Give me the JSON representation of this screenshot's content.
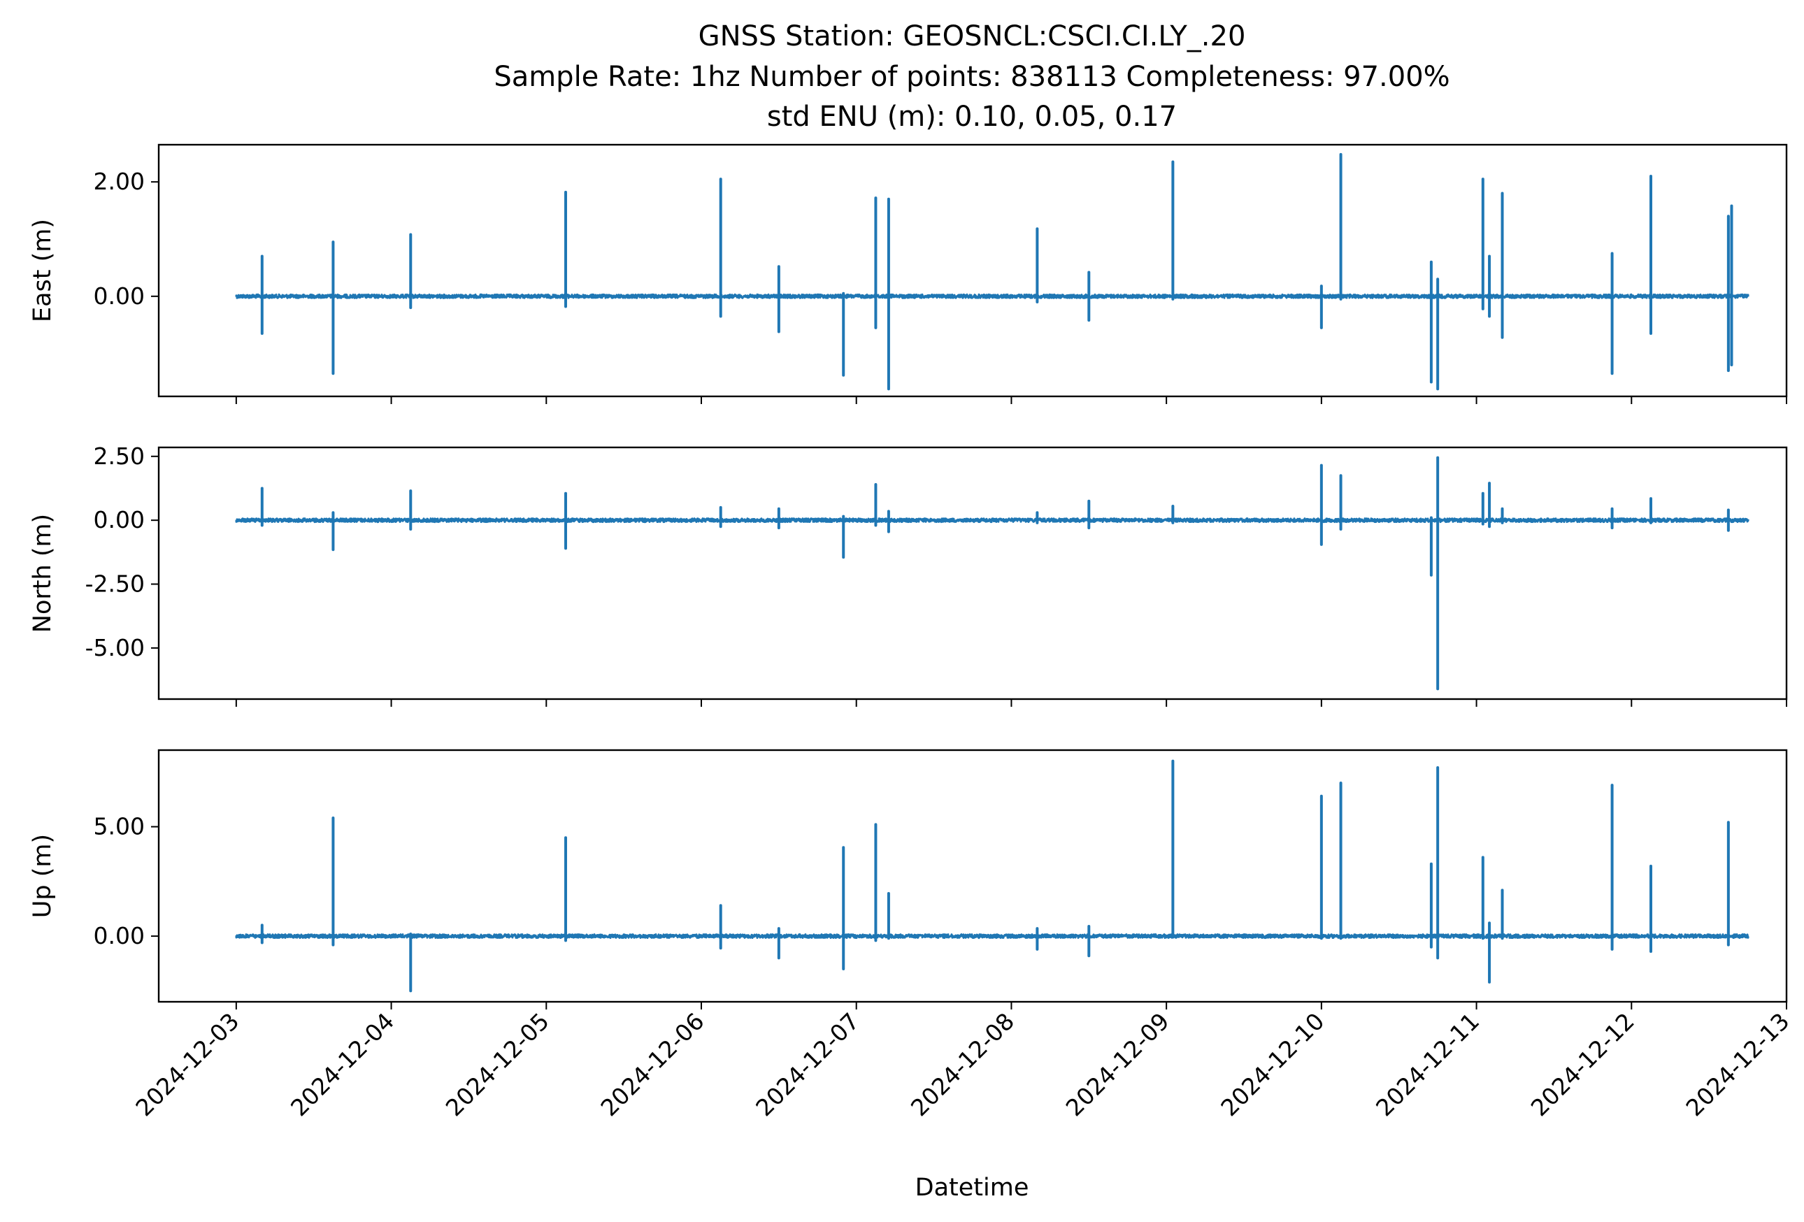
{
  "chart_data": {
    "type": "line",
    "title_lines": [
      "GNSS Station: GEOSNCL:CSCI.CI.LY_.20",
      "Sample Rate: 1hz   Number of points: 838113    Completeness:  97.00%",
      "std ENU (m):  0.10, 0.05, 0.17"
    ],
    "xlabel": "Datetime",
    "x_ticks": [
      "2024-12-03",
      "2024-12-04",
      "2024-12-05",
      "2024-12-06",
      "2024-12-07",
      "2024-12-08",
      "2024-12-09",
      "2024-12-10",
      "2024-12-11",
      "2024-12-12",
      "2024-12-13"
    ],
    "x_range": [
      "2024-12-02 12:00",
      "2024-12-13 00:00"
    ],
    "data_range": [
      "2024-12-03 00:00",
      "2024-12-12 18:00"
    ],
    "line_color": "#1f77b4",
    "grid": false,
    "panels": [
      {
        "ylabel": "East (m)",
        "ylim": [
          -1.75,
          2.65
        ],
        "y_ticks": [
          {
            "value": 2.0,
            "label": "2.00"
          },
          {
            "value": 0.0,
            "label": "0.00"
          }
        ],
        "spikes": [
          {
            "t": "2024-12-03 04:00",
            "max": 0.7,
            "min": -0.65
          },
          {
            "t": "2024-12-03 15:00",
            "max": 0.95,
            "min": -1.35
          },
          {
            "t": "2024-12-04 03:00",
            "max": 1.08,
            "min": -0.2
          },
          {
            "t": "2024-12-05 03:00",
            "max": 1.82,
            "min": -0.18
          },
          {
            "t": "2024-12-06 03:00",
            "max": 2.05,
            "min": -0.35
          },
          {
            "t": "2024-12-06 12:00",
            "max": 0.52,
            "min": -0.62
          },
          {
            "t": "2024-12-06 22:00",
            "max": 0.05,
            "min": -1.38
          },
          {
            "t": "2024-12-07 03:00",
            "max": 1.72,
            "min": -0.55
          },
          {
            "t": "2024-12-07 05:00",
            "max": 1.7,
            "min": -1.62
          },
          {
            "t": "2024-12-08 04:00",
            "max": 1.18,
            "min": -0.1
          },
          {
            "t": "2024-12-08 12:00",
            "max": 0.42,
            "min": -0.42
          },
          {
            "t": "2024-12-09 01:00",
            "max": 2.35,
            "min": -0.05
          },
          {
            "t": "2024-12-10 00:00",
            "max": 0.18,
            "min": -0.55
          },
          {
            "t": "2024-12-10 03:00",
            "max": 2.48,
            "min": -0.05
          },
          {
            "t": "2024-12-10 17:00",
            "max": 0.6,
            "min": -1.5
          },
          {
            "t": "2024-12-10 18:00",
            "max": 0.3,
            "min": -1.62
          },
          {
            "t": "2024-12-11 01:00",
            "max": 2.05,
            "min": -0.22
          },
          {
            "t": "2024-12-11 02:00",
            "max": 0.7,
            "min": -0.35
          },
          {
            "t": "2024-12-11 04:00",
            "max": 1.8,
            "min": -0.72
          },
          {
            "t": "2024-12-11 21:00",
            "max": 0.75,
            "min": -1.35
          },
          {
            "t": "2024-12-12 03:00",
            "max": 2.1,
            "min": -0.65
          },
          {
            "t": "2024-12-12 15:00",
            "max": 1.4,
            "min": -1.3
          },
          {
            "t": "2024-12-12 15:30",
            "max": 1.58,
            "min": -1.2
          }
        ]
      },
      {
        "ylabel": "North (m)",
        "ylim": [
          -7.0,
          2.85
        ],
        "y_ticks": [
          {
            "value": 2.5,
            "label": "2.50"
          },
          {
            "value": 0.0,
            "label": "0.00"
          },
          {
            "value": -2.5,
            "label": "-2.50"
          },
          {
            "value": -5.0,
            "label": "-5.00"
          }
        ],
        "spikes": [
          {
            "t": "2024-12-03 04:00",
            "max": 1.25,
            "min": -0.2
          },
          {
            "t": "2024-12-03 15:00",
            "max": 0.3,
            "min": -1.15
          },
          {
            "t": "2024-12-04 03:00",
            "max": 1.15,
            "min": -0.35
          },
          {
            "t": "2024-12-05 03:00",
            "max": 1.05,
            "min": -1.1
          },
          {
            "t": "2024-12-06 03:00",
            "max": 0.5,
            "min": -0.25
          },
          {
            "t": "2024-12-06 12:00",
            "max": 0.45,
            "min": -0.3
          },
          {
            "t": "2024-12-06 22:00",
            "max": 0.15,
            "min": -1.45
          },
          {
            "t": "2024-12-07 03:00",
            "max": 1.4,
            "min": -0.2
          },
          {
            "t": "2024-12-07 05:00",
            "max": 0.35,
            "min": -0.45
          },
          {
            "t": "2024-12-08 04:00",
            "max": 0.3,
            "min": -0.1
          },
          {
            "t": "2024-12-08 12:00",
            "max": 0.75,
            "min": -0.3
          },
          {
            "t": "2024-12-09 01:00",
            "max": 0.55,
            "min": -0.1
          },
          {
            "t": "2024-12-10 00:00",
            "max": 2.15,
            "min": -0.95
          },
          {
            "t": "2024-12-10 03:00",
            "max": 1.75,
            "min": -0.35
          },
          {
            "t": "2024-12-10 17:00",
            "max": 0.1,
            "min": -2.15
          },
          {
            "t": "2024-12-10 18:00",
            "max": 2.45,
            "min": -6.6
          },
          {
            "t": "2024-12-11 01:00",
            "max": 1.05,
            "min": -0.15
          },
          {
            "t": "2024-12-11 02:00",
            "max": 1.45,
            "min": -0.25
          },
          {
            "t": "2024-12-11 04:00",
            "max": 0.45,
            "min": -0.1
          },
          {
            "t": "2024-12-11 21:00",
            "max": 0.45,
            "min": -0.3
          },
          {
            "t": "2024-12-12 03:00",
            "max": 0.85,
            "min": -0.1
          },
          {
            "t": "2024-12-12 15:00",
            "max": 0.4,
            "min": -0.4
          }
        ]
      },
      {
        "ylabel": "Up (m)",
        "ylim": [
          -3.0,
          8.5
        ],
        "y_ticks": [
          {
            "value": 5.0,
            "label": "5.00"
          },
          {
            "value": 0.0,
            "label": "0.00"
          }
        ],
        "spikes": [
          {
            "t": "2024-12-03 04:00",
            "max": 0.5,
            "min": -0.3
          },
          {
            "t": "2024-12-03 15:00",
            "max": 5.4,
            "min": -0.4
          },
          {
            "t": "2024-12-04 03:00",
            "max": 0.1,
            "min": -2.5
          },
          {
            "t": "2024-12-05 03:00",
            "max": 4.5,
            "min": -0.2
          },
          {
            "t": "2024-12-06 03:00",
            "max": 1.4,
            "min": -0.55
          },
          {
            "t": "2024-12-06 12:00",
            "max": 0.35,
            "min": -1.0
          },
          {
            "t": "2024-12-06 22:00",
            "max": 4.05,
            "min": -1.5
          },
          {
            "t": "2024-12-07 03:00",
            "max": 5.1,
            "min": -0.2
          },
          {
            "t": "2024-12-07 05:00",
            "max": 1.95,
            "min": -0.1
          },
          {
            "t": "2024-12-08 04:00",
            "max": 0.35,
            "min": -0.6
          },
          {
            "t": "2024-12-08 12:00",
            "max": 0.45,
            "min": -0.9
          },
          {
            "t": "2024-12-09 01:00",
            "max": 8.0,
            "min": -0.05
          },
          {
            "t": "2024-12-10 00:00",
            "max": 6.4,
            "min": -0.1
          },
          {
            "t": "2024-12-10 03:00",
            "max": 7.0,
            "min": -0.1
          },
          {
            "t": "2024-12-10 17:00",
            "max": 3.3,
            "min": -0.5
          },
          {
            "t": "2024-12-10 18:00",
            "max": 7.7,
            "min": -1.0
          },
          {
            "t": "2024-12-11 01:00",
            "max": 3.6,
            "min": -0.1
          },
          {
            "t": "2024-12-11 02:00",
            "max": 0.6,
            "min": -2.1
          },
          {
            "t": "2024-12-11 04:00",
            "max": 2.1,
            "min": -0.1
          },
          {
            "t": "2024-12-11 21:00",
            "max": 6.9,
            "min": -0.6
          },
          {
            "t": "2024-12-12 03:00",
            "max": 3.2,
            "min": -0.7
          },
          {
            "t": "2024-12-12 15:00",
            "max": 5.2,
            "min": -0.4
          }
        ]
      }
    ]
  }
}
